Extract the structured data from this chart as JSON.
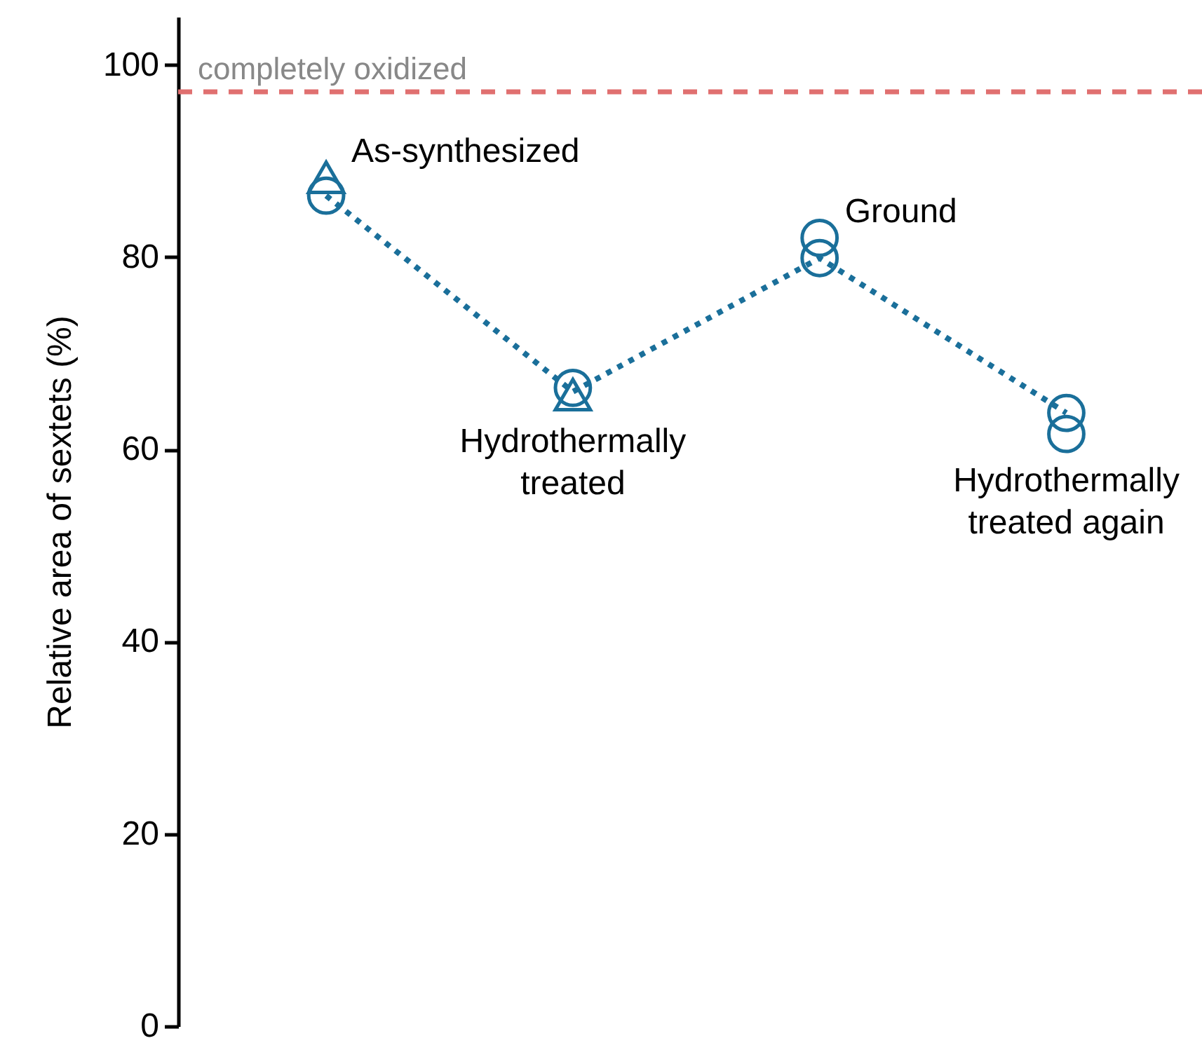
{
  "chart_data": {
    "type": "scatter",
    "ylabel": "Relative area of sextets (%)",
    "categories": [
      null,
      null,
      null,
      null
    ],
    "ylim": [
      0,
      105
    ],
    "yticks": [
      0,
      20,
      40,
      60,
      80,
      100
    ],
    "grid": false,
    "series": [
      {
        "type": "line",
        "color": "#1a6f9a",
        "marker": "none",
        "line_style": "dotted",
        "values": [
          86.4,
          66.0,
          79.9,
          63.8
        ]
      },
      {
        "color": "#1a6f9a",
        "marker": "triangle",
        "values": [
          88.3,
          65.7,
          null,
          null
        ]
      },
      {
        "color": "#1a6f9a",
        "marker": "circle",
        "values": [
          86.4,
          66.4,
          82.0,
          63.8
        ]
      },
      {
        "color": "#1a6f9a",
        "marker": "circle",
        "values": [
          null,
          null,
          79.9,
          61.6
        ]
      }
    ],
    "ref_lines": [
      {
        "axis": "y",
        "value": 97.2,
        "label": "completely oxidized",
        "color": "#e07070",
        "line_style": "dashed"
      }
    ],
    "annotations": [
      "As-synthesized",
      "Hydrothermally\ntreated",
      "Ground",
      "Hydrothermally\ntreated again"
    ]
  }
}
